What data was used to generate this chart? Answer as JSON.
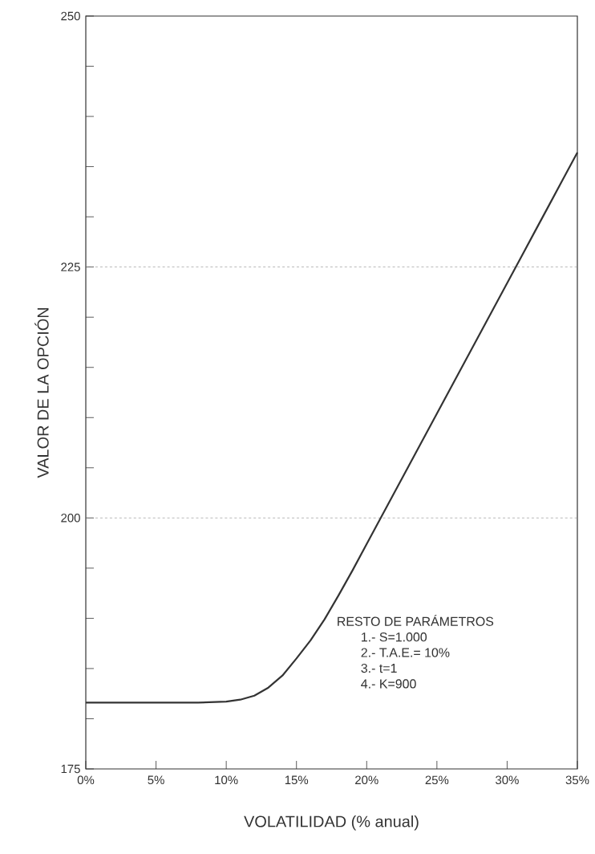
{
  "chart_data": {
    "type": "line",
    "xlabel": "VOLATILIDAD (% anual)",
    "ylabel": "VALOR DE LA OPCIÓN",
    "x": [
      0,
      5,
      8,
      10,
      11,
      12,
      13,
      14,
      15,
      16,
      17,
      18,
      19,
      20,
      21,
      22,
      23,
      24,
      25,
      26,
      27,
      28,
      29,
      30,
      31,
      32,
      33,
      34,
      35
    ],
    "series": [
      {
        "color": "#333333",
        "values": [
          181.6,
          181.6,
          181.6,
          181.7,
          181.9,
          182.3,
          183.1,
          184.3,
          186.0,
          187.8,
          189.9,
          192.3,
          194.8,
          197.4,
          200,
          202.6,
          205.2,
          207.8,
          210.4,
          213,
          215.6,
          218.2,
          220.8,
          223.4,
          226,
          228.6,
          231.2,
          233.8,
          236.4
        ]
      }
    ],
    "xlim": [
      0,
      35
    ],
    "ylim": [
      175,
      250
    ],
    "xticks": [
      {
        "value": 0,
        "label": "0%"
      },
      {
        "value": 5,
        "label": "5%"
      },
      {
        "value": 10,
        "label": "10%"
      },
      {
        "value": 15,
        "label": "15%"
      },
      {
        "value": 20,
        "label": "20%"
      },
      {
        "value": 25,
        "label": "25%"
      },
      {
        "value": 30,
        "label": "30%"
      },
      {
        "value": 35,
        "label": "35%"
      }
    ],
    "yticks": [
      175,
      {
        "value": 180,
        "label": null
      },
      {
        "value": 185,
        "label": null
      },
      {
        "value": 190,
        "label": null
      },
      {
        "value": 195,
        "label": null
      },
      200,
      {
        "value": 205,
        "label": null
      },
      {
        "value": 210,
        "label": null
      },
      {
        "value": 215,
        "label": null
      },
      {
        "value": 220,
        "label": null
      },
      225,
      {
        "value": 230,
        "label": null
      },
      {
        "value": 235,
        "label": null
      },
      {
        "value": 240,
        "label": null
      },
      {
        "value": 245,
        "label": null
      },
      250
    ],
    "ref_lines": [
      {
        "axis": "y",
        "value": 200,
        "color": "#888888",
        "line_style": "dashed"
      },
      {
        "axis": "y",
        "value": 225,
        "color": "#888888",
        "line_style": "dashed"
      }
    ],
    "annotations": [
      "RESTO DE PARÁMETROS",
      "1.- S=1.000",
      "2.- T.A.E.= 10%",
      "3.- t=1",
      "4.- K=900"
    ],
    "grid": false,
    "marker": "none",
    "line_style": "solid"
  }
}
